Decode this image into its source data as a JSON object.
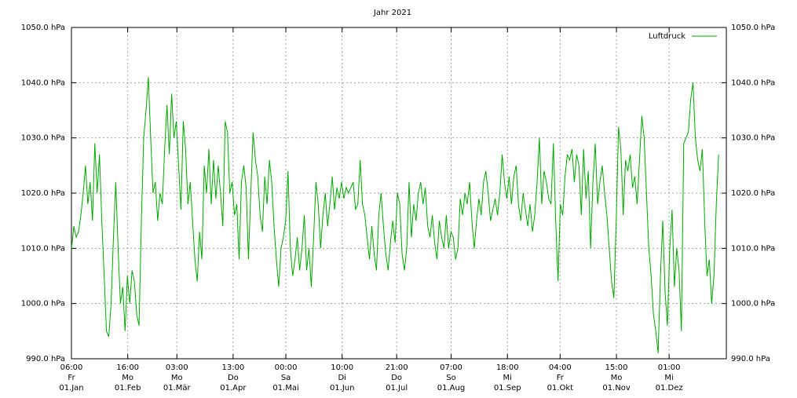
{
  "chart_data": {
    "type": "line",
    "title": "Jahr 2021",
    "color": "#00a800",
    "grid": true,
    "legend": "top-right",
    "xlim": [
      0.25,
      366
    ],
    "xticks": [
      {
        "value": 0.25,
        "label": [
          "06:00",
          "Fr",
          "01.Jan"
        ]
      },
      {
        "value": 31.67,
        "label": [
          "16:00",
          "Mo",
          "01.Feb"
        ]
      },
      {
        "value": 59.125,
        "label": [
          "03:00",
          "Mo",
          "01.Mär"
        ]
      },
      {
        "value": 90.54,
        "label": [
          "13:00",
          "Do",
          "01.Apr"
        ]
      },
      {
        "value": 120,
        "label": [
          "00:00",
          "Sa",
          "01.Mai"
        ]
      },
      {
        "value": 151.42,
        "label": [
          "10:00",
          "Di",
          "01.Jun"
        ]
      },
      {
        "value": 181.875,
        "label": [
          "21:00",
          "Do",
          "01.Jul"
        ]
      },
      {
        "value": 212.29,
        "label": [
          "07:00",
          "So",
          "01.Aug"
        ]
      },
      {
        "value": 243.75,
        "label": [
          "18:00",
          "Mi",
          "01.Sep"
        ]
      },
      {
        "value": 273.17,
        "label": [
          "04:00",
          "Fr",
          "01.Okt"
        ]
      },
      {
        "value": 304.625,
        "label": [
          "15:00",
          "Mo",
          "01.Nov"
        ]
      },
      {
        "value": 334.04,
        "label": [
          "01:00",
          "Mi",
          "01.Dez"
        ]
      }
    ],
    "ylim": [
      990,
      1050
    ],
    "yticks": [
      {
        "value": 990,
        "label": "990.0 hPa"
      },
      {
        "value": 1000,
        "label": "1000.0 hPa"
      },
      {
        "value": 1010,
        "label": "1010.0 hPa"
      },
      {
        "value": 1020,
        "label": "1020.0 hPa"
      },
      {
        "value": 1030,
        "label": "1030.0 hPa"
      },
      {
        "value": 1040,
        "label": "1040.0 hPa"
      },
      {
        "value": 1050,
        "label": "1050.0 hPa"
      }
    ],
    "x": [
      0.3,
      1.6,
      2.9,
      4.2,
      5.5,
      6.8,
      8.1,
      9.4,
      10.7,
      12,
      13.3,
      14.6,
      15.9,
      17.2,
      18.5,
      19.8,
      21.1,
      22.4,
      23.7,
      25,
      26.3,
      27.6,
      28.9,
      30.2,
      31.5,
      32.8,
      34.1,
      35.4,
      36.7,
      38,
      39.3,
      40.6,
      41.9,
      43.2,
      44.5,
      45.8,
      47.1,
      48.4,
      49.7,
      51,
      52.3,
      53.6,
      54.9,
      56.2,
      57.5,
      58.8,
      60.1,
      61.4,
      62.7,
      64,
      65.3,
      66.6,
      67.9,
      69.2,
      70.5,
      71.8,
      73.1,
      74.4,
      75.7,
      77,
      78.3,
      79.6,
      80.9,
      82.2,
      83.5,
      84.8,
      86.1,
      87.4,
      88.7,
      90,
      91.3,
      92.6,
      93.9,
      95.2,
      96.5,
      97.8,
      99.1,
      100.4,
      101.7,
      103,
      104.3,
      105.6,
      106.9,
      108.2,
      109.5,
      110.8,
      112.1,
      113.4,
      114.7,
      116,
      117.3,
      118.6,
      119.9,
      121.2,
      122.5,
      123.8,
      125.1,
      126.4,
      127.7,
      129,
      130.3,
      131.6,
      132.9,
      134.2,
      135.5,
      136.8,
      138.1,
      139.4,
      140.7,
      142,
      143.3,
      144.6,
      145.9,
      147.2,
      148.5,
      149.8,
      151.1,
      152.4,
      153.7,
      155,
      156.3,
      157.6,
      158.9,
      160.2,
      161.5,
      162.8,
      164.1,
      165.4,
      166.7,
      168,
      169.3,
      170.6,
      171.9,
      173.2,
      174.5,
      175.8,
      177.1,
      178.4,
      179.7,
      181,
      182.3,
      183.6,
      184.9,
      186.2,
      187.5,
      188.8,
      190.1,
      191.4,
      192.7,
      194,
      195.3,
      196.6,
      197.9,
      199.2,
      200.5,
      201.8,
      203.1,
      204.4,
      205.7,
      207,
      208.3,
      209.6,
      210.9,
      212.2,
      213.5,
      214.8,
      216.1,
      217.4,
      218.7,
      220,
      221.3,
      222.6,
      223.9,
      225.2,
      226.5,
      227.8,
      229.1,
      230.4,
      231.7,
      233,
      234.3,
      235.6,
      236.9,
      238.2,
      239.5,
      240.8,
      242.1,
      243.4,
      244.7,
      246,
      247.3,
      248.6,
      249.9,
      251.2,
      252.5,
      253.8,
      255.1,
      256.4,
      257.7,
      259,
      260.3,
      261.6,
      262.9,
      264.2,
      265.5,
      266.8,
      268.1,
      269.4,
      270.7,
      272,
      273.3,
      274.6,
      275.9,
      277.2,
      278.5,
      279.8,
      281.1,
      282.4,
      283.7,
      285,
      286.3,
      287.6,
      288.9,
      290.2,
      291.5,
      292.8,
      294.1,
      295.4,
      296.7,
      298,
      299.3,
      300.6,
      301.9,
      303.2,
      304.5,
      305.8,
      307.1,
      308.4,
      309.7,
      311,
      312.3,
      313.6,
      314.9,
      316.2,
      317.5,
      318.8,
      320.1,
      321.4,
      322.7,
      324,
      325.3,
      326.6,
      327.9,
      329.2,
      330.5,
      331.8,
      333.1,
      334.4,
      335.7,
      337,
      338.3,
      339.6,
      340.9,
      342.2,
      343.5,
      344.8,
      346.1,
      347.4,
      348.7,
      350,
      351.3,
      352.6,
      353.9,
      355.2,
      356.5,
      357.8,
      359.1,
      360.4,
      361.7
    ],
    "series": [
      {
        "name": "Luftdruck",
        "color": "#00a800",
        "values": [
          1010,
          1014,
          1012,
          1013,
          1016,
          1020,
          1025,
          1018,
          1022,
          1015,
          1029,
          1020,
          1027,
          1015,
          1005,
          995,
          994,
          1000,
          1012,
          1022,
          1010,
          1000,
          1003,
          995,
          1005,
          1000,
          1006,
          1004,
          998,
          996,
          1015,
          1030,
          1035,
          1041,
          1030,
          1020,
          1022,
          1015,
          1020,
          1018,
          1028,
          1036,
          1027,
          1038,
          1030,
          1033,
          1025,
          1017,
          1033,
          1028,
          1018,
          1022,
          1015,
          1008,
          1004,
          1013,
          1008,
          1025,
          1020,
          1028,
          1018,
          1026,
          1019,
          1025,
          1020,
          1014,
          1033,
          1031,
          1020,
          1022,
          1016,
          1018,
          1008,
          1022,
          1025,
          1021,
          1008,
          1020,
          1031,
          1026,
          1023,
          1016,
          1013,
          1023,
          1018,
          1026,
          1022,
          1014,
          1008,
          1003,
          1010,
          1012,
          1015,
          1024,
          1010,
          1005,
          1008,
          1012,
          1006,
          1010,
          1016,
          1006,
          1010,
          1003,
          1012,
          1022,
          1018,
          1010,
          1016,
          1020,
          1014,
          1018,
          1023,
          1017,
          1021,
          1019,
          1022,
          1019,
          1021,
          1020,
          1021,
          1022,
          1017,
          1018,
          1026,
          1018,
          1016,
          1012,
          1008,
          1014,
          1009,
          1006,
          1016,
          1020,
          1014,
          1009,
          1006,
          1011,
          1015,
          1011,
          1020,
          1018,
          1009,
          1006,
          1010,
          1022,
          1012,
          1018,
          1015,
          1020,
          1022,
          1018,
          1021,
          1014,
          1012,
          1016,
          1011,
          1008,
          1015,
          1012,
          1010,
          1016,
          1010,
          1013,
          1012,
          1008,
          1010,
          1019,
          1016,
          1020,
          1018,
          1022,
          1015,
          1010,
          1015,
          1019,
          1016,
          1022,
          1024,
          1020,
          1015,
          1017,
          1019,
          1016,
          1020,
          1027,
          1022,
          1019,
          1023,
          1018,
          1023,
          1025,
          1018,
          1015,
          1020,
          1017,
          1014,
          1018,
          1013,
          1016,
          1022,
          1030,
          1018,
          1024,
          1022,
          1019,
          1018,
          1029,
          1015,
          1004,
          1018,
          1016,
          1023,
          1027,
          1026,
          1028,
          1022,
          1027,
          1025,
          1016,
          1028,
          1019,
          1024,
          1010,
          1022,
          1029,
          1018,
          1022,
          1025,
          1020,
          1016,
          1010,
          1004,
          1001,
          1015,
          1032,
          1028,
          1016,
          1026,
          1024,
          1027,
          1021,
          1023,
          1018,
          1026,
          1034,
          1030,
          1020,
          1010,
          1005,
          998,
          995,
          991,
          1005,
          1015,
          1002,
          996,
          1010,
          1017,
          1003,
          1010,
          1006,
          995,
          1029,
          1030,
          1031,
          1037,
          1040,
          1030,
          1026,
          1024,
          1028,
          1015,
          1005,
          1008,
          1000,
          1005,
          1018,
          1027
        ]
      }
    ]
  }
}
